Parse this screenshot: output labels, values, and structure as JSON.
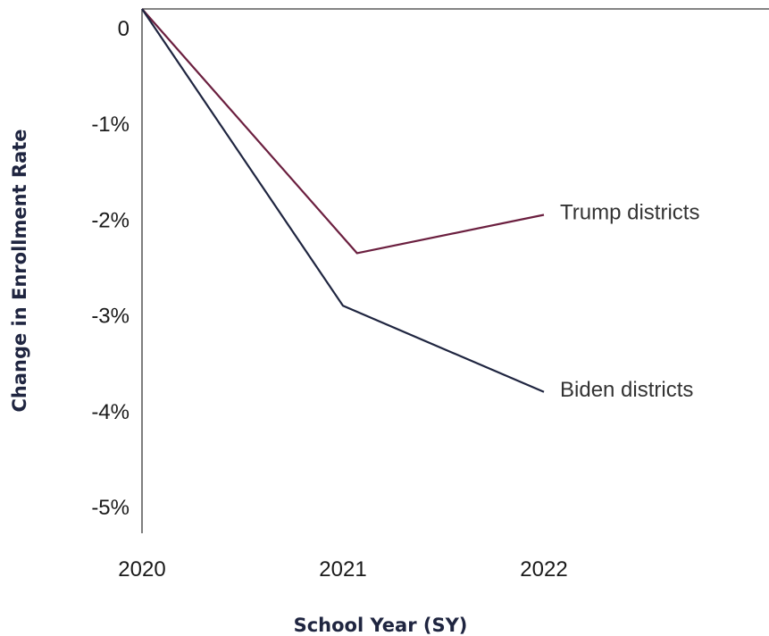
{
  "chart_data": {
    "type": "line",
    "title": "",
    "xlabel": "School Year (SY)",
    "ylabel": "Change in Enrollment Rate",
    "x": [
      "2020",
      "2021",
      "2022"
    ],
    "y_ticks": [
      {
        "value": 0,
        "label": "0"
      },
      {
        "value": -1,
        "label": "-1%"
      },
      {
        "value": -2,
        "label": "-2%"
      },
      {
        "value": -3,
        "label": "-3%"
      },
      {
        "value": -4,
        "label": "-4%"
      },
      {
        "value": -5,
        "label": "-5%"
      }
    ],
    "ylim": [
      -5.3,
      0.15
    ],
    "xlim": [
      "2020",
      "2022"
    ],
    "grid": false,
    "legend": "direct labels at line ends",
    "series": [
      {
        "name": "Trump districts",
        "color": "#6b1f3f",
        "x": [
          2020,
          2021.07,
          2022
        ],
        "values": [
          0,
          -2.55,
          -2.15
        ]
      },
      {
        "name": "Biden districts",
        "color": "#1f2540",
        "x": [
          2020,
          2021,
          2022
        ],
        "values": [
          0,
          -3.1,
          -4.0
        ]
      }
    ]
  }
}
